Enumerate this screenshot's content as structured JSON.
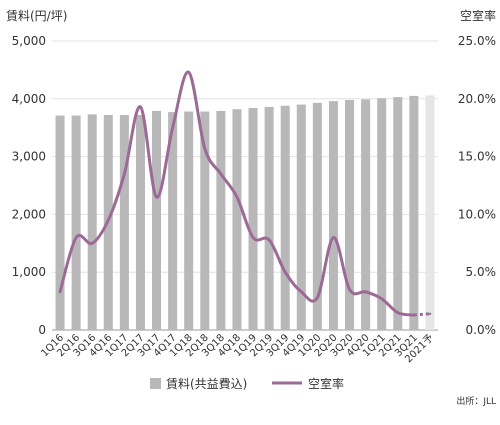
{
  "chart_data": {
    "type": "bar",
    "categories": [
      "1Q16",
      "2Q16",
      "3Q16",
      "4Q16",
      "1Q17",
      "2Q17",
      "3Q17",
      "4Q17",
      "1Q18",
      "2Q18",
      "3Q18",
      "4Q18",
      "1Q19",
      "2Q19",
      "3Q19",
      "4Q19",
      "1Q20",
      "2Q20",
      "3Q20",
      "4Q20",
      "1Q21",
      "2Q21",
      "3Q21",
      "2021予"
    ],
    "series": [
      {
        "name": "賃料(共益費込)",
        "type": "bar",
        "axis": "left",
        "color": "#b8b8b8",
        "values": [
          3710,
          3710,
          3730,
          3720,
          3720,
          3720,
          3790,
          3770,
          3780,
          3780,
          3790,
          3820,
          3840,
          3860,
          3880,
          3900,
          3930,
          3960,
          3980,
          3990,
          4010,
          4030,
          4050,
          4060
        ]
      },
      {
        "name": "空室率",
        "type": "line",
        "axis": "right",
        "color": "#9b6b96",
        "values": [
          3.3,
          8.0,
          7.5,
          9.5,
          13.5,
          19.3,
          11.5,
          17.5,
          22.3,
          15.7,
          13.5,
          11.5,
          8.0,
          7.8,
          5.0,
          3.3,
          2.8,
          8.0,
          3.5,
          3.3,
          2.7,
          1.5,
          1.3,
          1.4
        ]
      }
    ],
    "forecast_index": 23,
    "y_left_label": "賃料(円/坪)",
    "y_right_label": "空室率",
    "y_left_ticks": [
      "0",
      "1,000",
      "2,000",
      "3,000",
      "4,000",
      "5,000"
    ],
    "y_right_ticks": [
      "0.0%",
      "5.0%",
      "10.0%",
      "15.0%",
      "20.0%",
      "25.0%"
    ],
    "ylim_left": [
      0,
      5000
    ],
    "ylim_right": [
      0,
      25
    ],
    "grid": true,
    "legend_position": "bottom",
    "source": "出所：JLL"
  }
}
